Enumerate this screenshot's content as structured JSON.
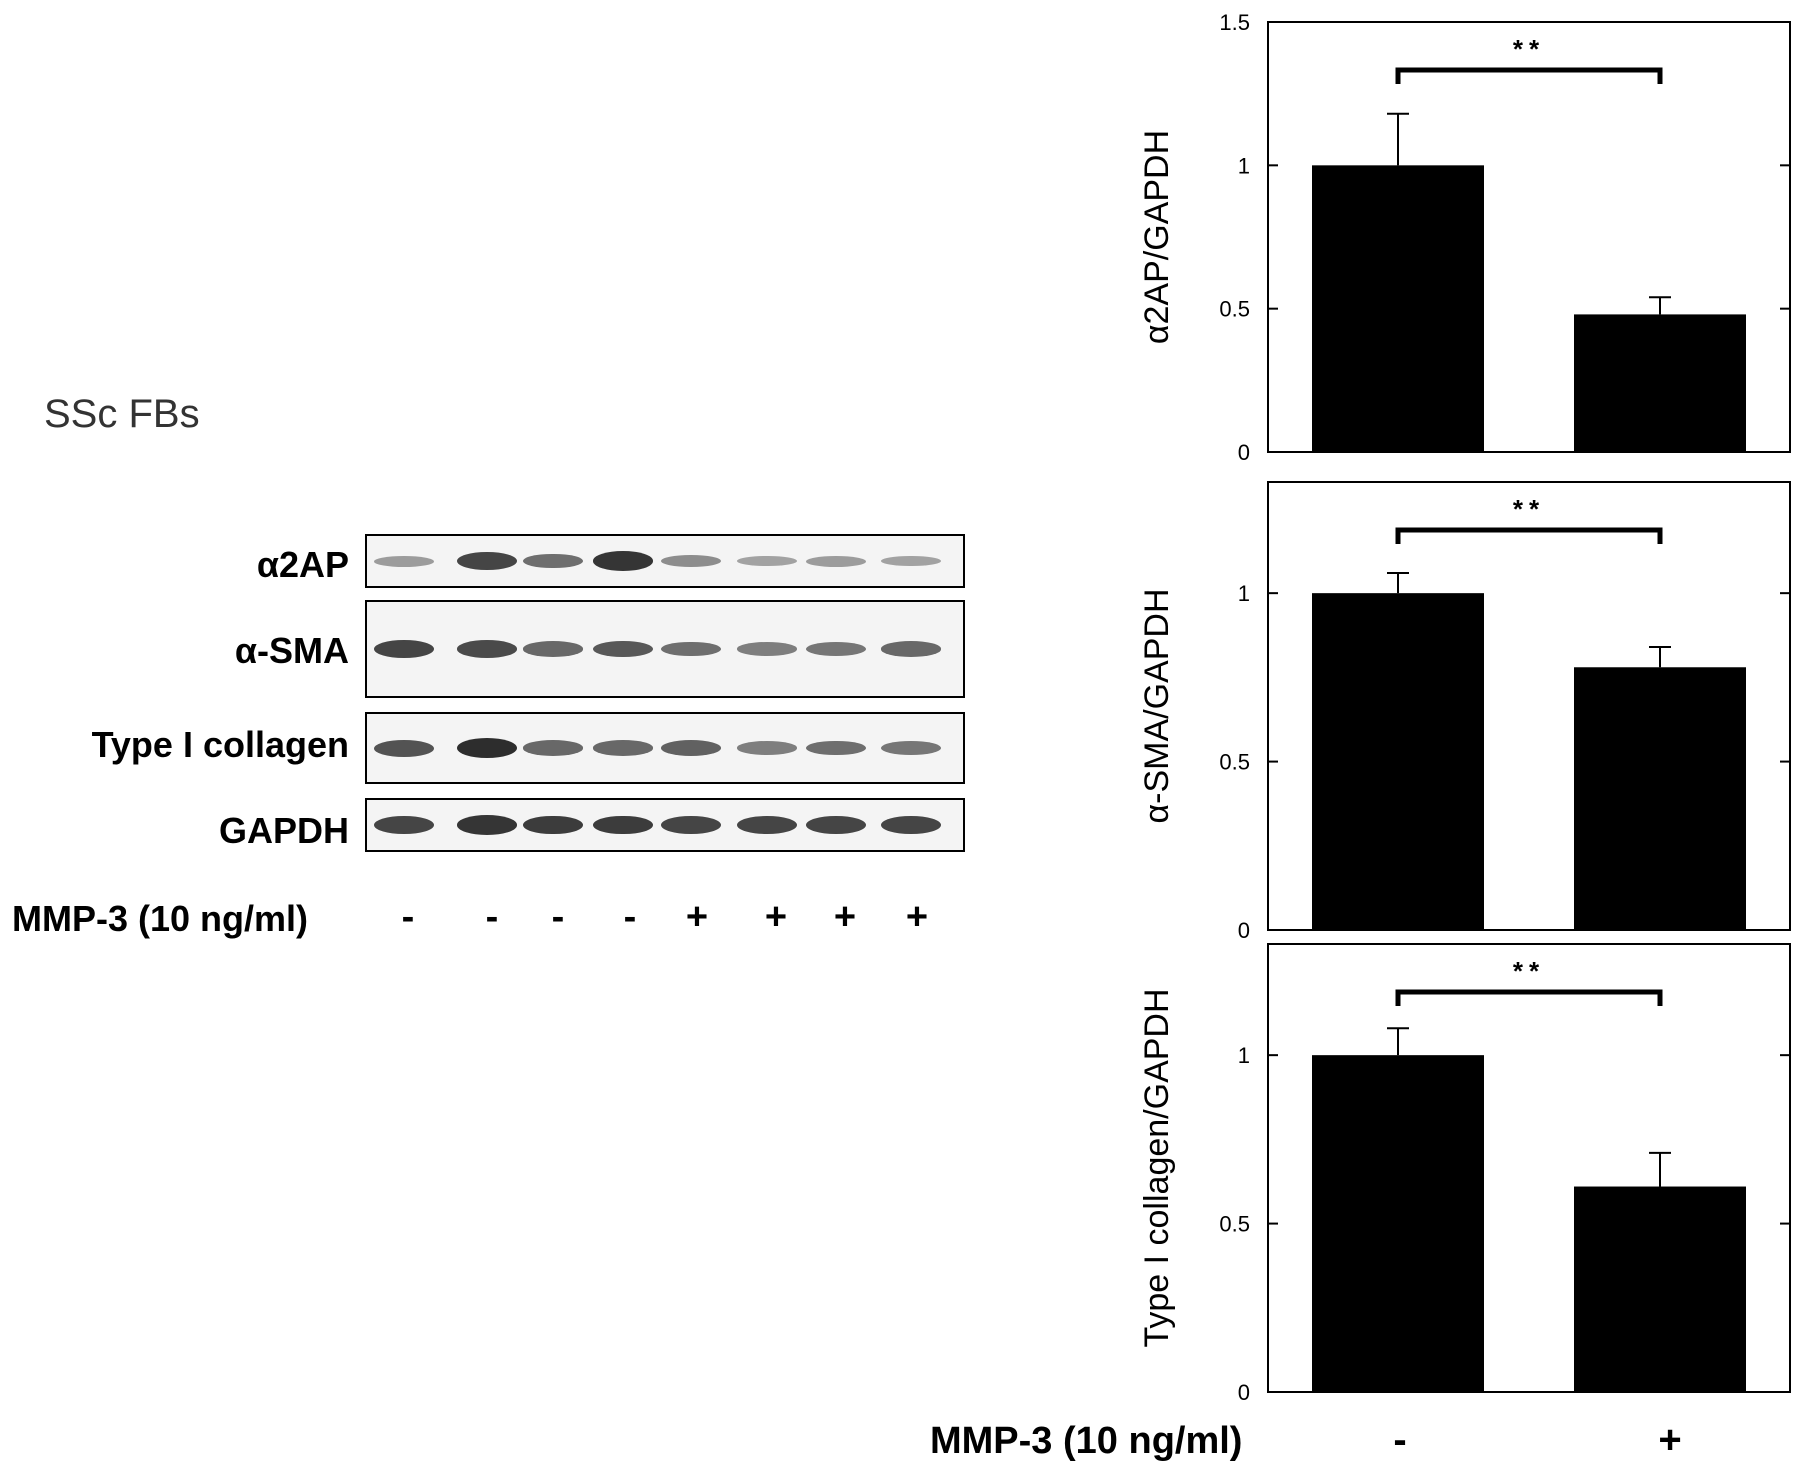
{
  "figure_label": "SSc FBs",
  "western_blot": {
    "rows": [
      {
        "label": "α2AP",
        "intensities": [
          0.25,
          0.85,
          0.55,
          0.95,
          0.35,
          0.2,
          0.25,
          0.2
        ]
      },
      {
        "label": "α-SMA",
        "intensities": [
          0.85,
          0.8,
          0.6,
          0.7,
          0.55,
          0.45,
          0.5,
          0.6
        ]
      },
      {
        "label": "Type I collagen",
        "intensities": [
          0.75,
          1.0,
          0.6,
          0.6,
          0.65,
          0.45,
          0.55,
          0.5
        ]
      },
      {
        "label": "GAPDH",
        "intensities": [
          0.85,
          0.95,
          0.9,
          0.9,
          0.85,
          0.85,
          0.85,
          0.85
        ]
      }
    ],
    "treatment_label": "MMP-3 (10 ng/ml)",
    "treatment_signs": [
      "-",
      "-",
      "-",
      "-",
      "+",
      "+",
      "+",
      "+"
    ]
  },
  "bar_treatment_label": "MMP-3 (10 ng/ml)",
  "bar_treatment_signs": [
    "-",
    "+"
  ],
  "chart_data": [
    {
      "type": "bar",
      "categories": [
        "-",
        "+"
      ],
      "values": [
        1.0,
        0.48
      ],
      "errors": [
        0.18,
        0.06
      ],
      "ylabel": "α2AP/GAPDH",
      "xlabel": "",
      "ylim": [
        0,
        1.5
      ],
      "yticks": [
        0,
        0.5,
        1,
        1.5
      ],
      "significance": "**"
    },
    {
      "type": "bar",
      "categories": [
        "-",
        "+"
      ],
      "values": [
        1.0,
        0.78
      ],
      "errors": [
        0.06,
        0.06
      ],
      "ylabel": "α-SMA/GAPDH",
      "xlabel": "",
      "ylim": [
        0,
        1.33
      ],
      "yticks": [
        0,
        0.5,
        1
      ],
      "significance": "**"
    },
    {
      "type": "bar",
      "categories": [
        "-",
        "+"
      ],
      "values": [
        1.0,
        0.61
      ],
      "errors": [
        0.08,
        0.1
      ],
      "ylabel": "Type I collagen/GAPDH",
      "xlabel": "",
      "ylim": [
        0,
        1.33
      ],
      "yticks": [
        0,
        0.5,
        1
      ],
      "significance": "**"
    }
  ]
}
